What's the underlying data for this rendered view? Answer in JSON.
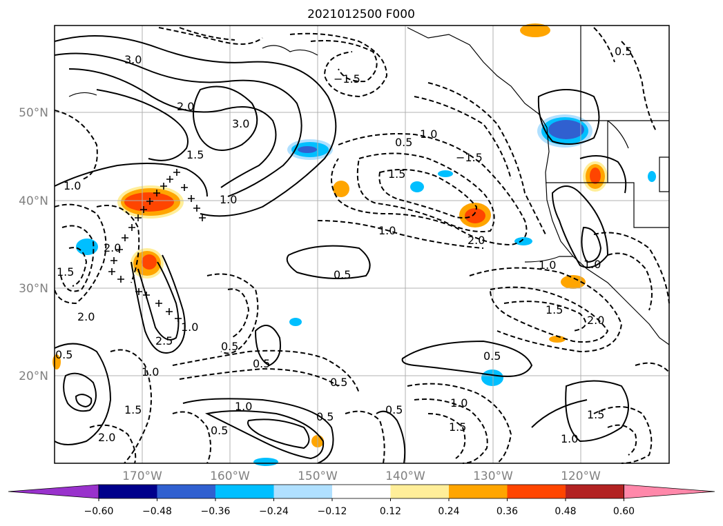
{
  "title": "2021012500 F000",
  "latitude_labels": [
    "50°N",
    "40°N",
    "30°N",
    "20°N"
  ],
  "longitude_labels": [
    "170°W",
    "160°W",
    "150°W",
    "140°W",
    "130°W",
    "120°W"
  ],
  "colorbar": {
    "tick_labels": [
      "−0.60",
      "−0.48",
      "−0.36",
      "−0.24",
      "−0.12",
      "0.12",
      "0.24",
      "0.36",
      "0.48",
      "0.60"
    ],
    "colors": [
      "#9932cc",
      "#00008b",
      "#3060d0",
      "#00bfff",
      "#b0e0ff",
      "#ffffff",
      "#ffee99",
      "#ffa500",
      "#ff4500",
      "#b22222",
      "#ff88aa"
    ]
  },
  "contour_labels": [
    "3.0",
    "2.0",
    "3.0",
    "1.5",
    "1.0",
    "1.0",
    "1.0",
    "−1.5",
    "0.5",
    "1.0",
    "−1.5",
    "1.5",
    "2.0",
    "1.0",
    "0.5",
    "0.5",
    "1.0",
    "1.5",
    "2.0",
    "0.5",
    "0.5",
    "0.5",
    "1.0",
    "1.5",
    "2.0",
    "1.0",
    "1.5",
    "1.0",
    "1.5",
    "0.5",
    "0.5",
    "0.5",
    "2.0",
    "2.5",
    "1.0",
    "1.0",
    "0.5",
    "0.5",
    "1.5",
    "2.0"
  ]
}
